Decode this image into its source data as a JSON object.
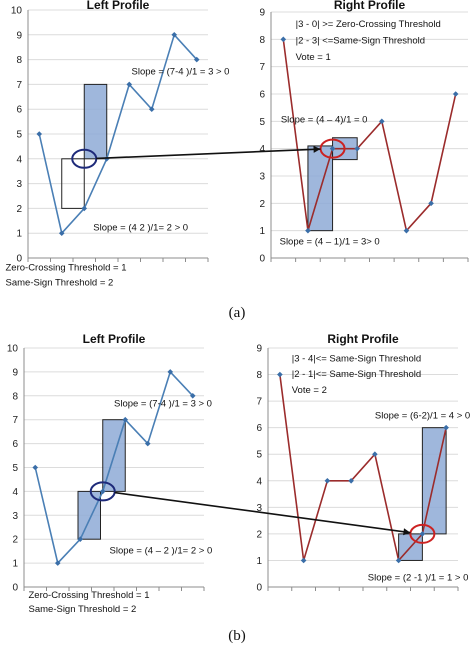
{
  "captions": [
    "(a)",
    "(b)"
  ],
  "chart_data": [
    {
      "type": "line",
      "panel": "(a)",
      "title": "Left Profile",
      "x": [
        1,
        2,
        3,
        4,
        5,
        6,
        7,
        8
      ],
      "series": [
        {
          "values": [
            5,
            1,
            2,
            4,
            7,
            6,
            9,
            8
          ],
          "color": "#4a7fb5"
        }
      ],
      "ylim": [
        0,
        10
      ],
      "yticks": [
        0,
        1,
        2,
        3,
        4,
        5,
        6,
        7,
        8,
        9,
        10
      ],
      "grid": true,
      "boxes": [
        {
          "x": [
            2,
            3
          ],
          "y": [
            2,
            4
          ],
          "fill": "none"
        },
        {
          "x": [
            3,
            4
          ],
          "y": [
            4,
            7
          ],
          "fill": "#8eaad6"
        }
      ],
      "circle": {
        "x": 3,
        "y": 4,
        "color": "#1e2a7a"
      },
      "annotations": [
        {
          "text": "Slope = (7-4 )/1 = 3 > 0",
          "at": [
            5.1,
            7.4
          ]
        },
        {
          "text": "Slope = (4   2 )/1= 2 > 0",
          "at": [
            3.4,
            1.1
          ]
        },
        {
          "text": "Zero-Crossing Threshold = 1",
          "at": [
            -0.5,
            -0.5
          ]
        },
        {
          "text": "Same-Sign Threshold = 2",
          "at": [
            -0.5,
            -1.1
          ]
        }
      ]
    },
    {
      "type": "line",
      "panel": "(a)",
      "title": "Right Profile",
      "x": [
        1,
        2,
        3,
        4,
        5,
        6,
        7,
        8
      ],
      "series": [
        {
          "values": [
            8,
            1,
            4,
            4,
            5,
            1,
            2,
            6
          ],
          "color": "#9b2c2c"
        }
      ],
      "ylim": [
        0,
        9
      ],
      "yticks": [
        0,
        1,
        2,
        3,
        4,
        5,
        6,
        7,
        8,
        9
      ],
      "grid": true,
      "boxes": [
        {
          "x": [
            2,
            3
          ],
          "y": [
            1,
            4.1
          ],
          "fill": "#8eaad6"
        },
        {
          "x": [
            3,
            4
          ],
          "y": [
            3.6,
            4.4
          ],
          "fill": "#8eaad6"
        }
      ],
      "circle": {
        "x": 3,
        "y": 4,
        "color": "#cc2222"
      },
      "annotations": [
        {
          "text": "|3 - 0| >= Zero-Crossing Threshold",
          "at": [
            1.5,
            8.45
          ]
        },
        {
          "text": "|2 - 3| <=Same-Sign Threshold",
          "at": [
            1.5,
            7.85
          ]
        },
        {
          "text": "Vote = 1",
          "at": [
            1.5,
            7.25
          ]
        },
        {
          "text": "Slope = (4 – 4)/1 = 0",
          "at": [
            0.9,
            4.95
          ]
        },
        {
          "text": "Slope = (4 – 1)/1 = 3> 0",
          "at": [
            0.85,
            0.5
          ]
        }
      ]
    },
    {
      "type": "line",
      "panel": "(b)",
      "title": "Left Profile",
      "x": [
        1,
        2,
        3,
        4,
        5,
        6,
        7,
        8
      ],
      "series": [
        {
          "values": [
            5,
            1,
            2,
            4,
            7,
            6,
            9,
            8
          ],
          "color": "#4a7fb5"
        }
      ],
      "ylim": [
        0,
        10
      ],
      "yticks": [
        0,
        1,
        2,
        3,
        4,
        5,
        6,
        7,
        8,
        9,
        10
      ],
      "grid": true,
      "boxes": [
        {
          "x": [
            2.9,
            3.9
          ],
          "y": [
            2,
            4
          ],
          "fill": "#8eaad6"
        },
        {
          "x": [
            4,
            5
          ],
          "y": [
            4,
            7
          ],
          "fill": "#8eaad6"
        }
      ],
      "circle": {
        "x": 4,
        "y": 4,
        "color": "#1e2a7a"
      },
      "annotations": [
        {
          "text": "Slope = (7-4 )/1 = 3 > 0",
          "at": [
            4.5,
            7.55
          ]
        },
        {
          "text": "Slope  = (4 – 2 )/1= 2 > 0",
          "at": [
            4.3,
            1.4
          ]
        },
        {
          "text": "Zero-Crossing Threshold = 1",
          "at": [
            0.7,
            -0.45
          ]
        },
        {
          "text": "Same-Sign Threshold = 2",
          "at": [
            0.7,
            -1.05
          ]
        }
      ]
    },
    {
      "type": "line",
      "panel": "(b)",
      "title": "Right Profile",
      "x": [
        1,
        2,
        3,
        4,
        5,
        6,
        7,
        8
      ],
      "series": [
        {
          "values": [
            8,
            1,
            4,
            4,
            5,
            1,
            2,
            6
          ],
          "color": "#9b2c2c"
        }
      ],
      "ylim": [
        0,
        9
      ],
      "yticks": [
        0,
        1,
        2,
        3,
        4,
        5,
        6,
        7,
        8,
        9
      ],
      "grid": true,
      "boxes": [
        {
          "x": [
            6,
            7
          ],
          "y": [
            1,
            2
          ],
          "fill": "#8eaad6"
        },
        {
          "x": [
            7,
            8
          ],
          "y": [
            2,
            6
          ],
          "fill": "#8eaad6"
        }
      ],
      "circle": {
        "x": 7,
        "y": 2,
        "color": "#cc2222"
      },
      "annotations": [
        {
          "text": "|3 - 4|<= Same-Sign Threshold",
          "at": [
            1.5,
            8.5
          ]
        },
        {
          "text": "|2 - 1|<= Same-Sign Threshold",
          "at": [
            1.5,
            7.9
          ]
        },
        {
          "text": "Vote = 2",
          "at": [
            1.5,
            7.3
          ]
        },
        {
          "text": "Slope = (6-2)/1 = 4 > 0",
          "at": [
            5.0,
            6.35
          ]
        },
        {
          "text": "Slope = (2 -1 )/1 = 1 > 0",
          "at": [
            4.7,
            0.25
          ]
        }
      ]
    }
  ],
  "connectors": [
    {
      "from_chart": 0,
      "to_chart": 1
    },
    {
      "from_chart": 2,
      "to_chart": 3
    }
  ]
}
